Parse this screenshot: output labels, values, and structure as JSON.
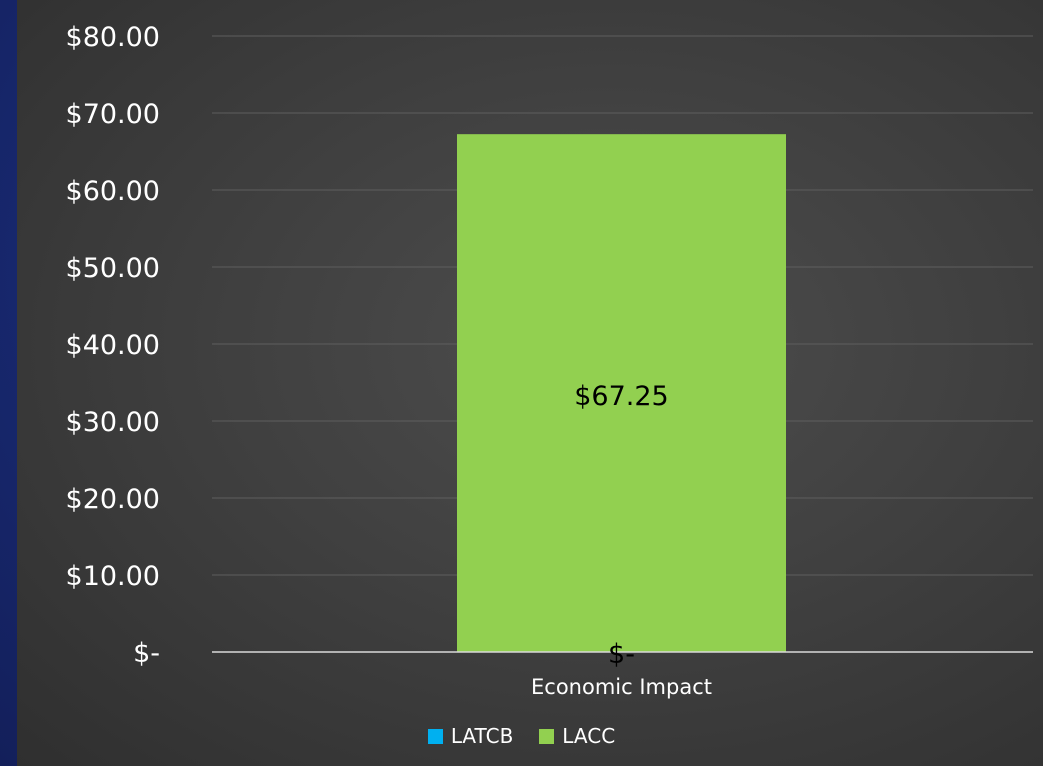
{
  "chart_data": {
    "type": "bar",
    "categories": [
      "Economic Impact"
    ],
    "series": [
      {
        "name": "LATCB",
        "values": [
          0
        ],
        "value_labels": [
          "$-"
        ],
        "color": "#00b0f0"
      },
      {
        "name": "LACC",
        "values": [
          67.25
        ],
        "value_labels": [
          "$67.25"
        ],
        "color": "#92d050"
      }
    ],
    "y_ticks": [
      0,
      10,
      20,
      30,
      40,
      50,
      60,
      70,
      80
    ],
    "y_tick_labels": [
      "$-",
      "$10.00",
      "$20.00",
      "$30.00",
      "$40.00",
      "$50.00",
      "$60.00",
      "$70.00",
      "$80.00"
    ],
    "ylim": [
      0,
      80
    ],
    "grid": true,
    "legend_position": "bottom"
  }
}
